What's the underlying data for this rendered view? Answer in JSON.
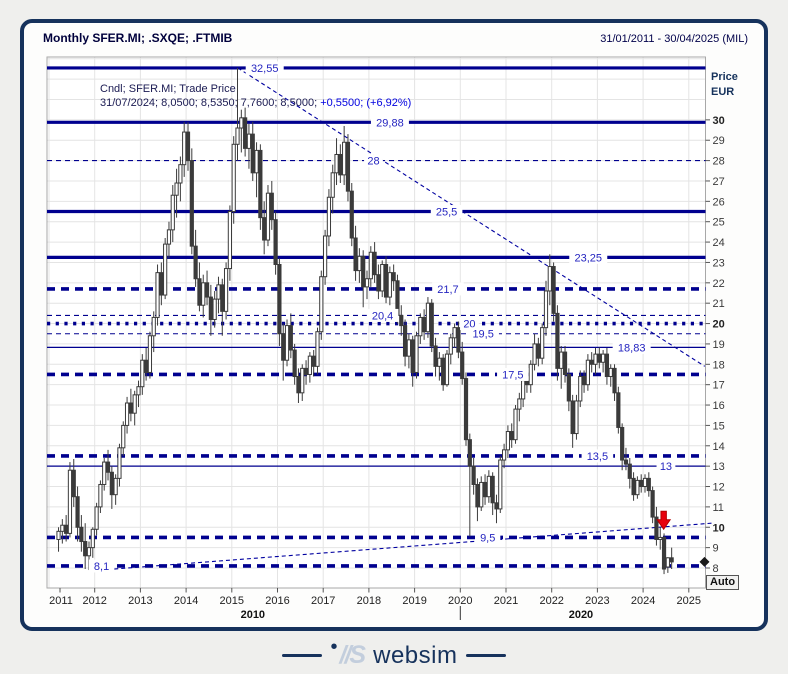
{
  "window": {
    "title": "Monthly SFER.MI; .SXQE; .FTMIB",
    "date_range": "31/01/2011 - 30/04/2025 (MIL)"
  },
  "legend": {
    "line1": "Cndl; SFER.MI; Trade Price",
    "line2_main": "31/07/2024; 8,0500; 8,5350; 7,7600; 8,5000; ",
    "line2_change": "+0,5500; (+6,92%)"
  },
  "price_axis": {
    "title_line1": "Price",
    "title_line2": "EUR",
    "ticks": [
      8,
      9,
      10,
      11,
      12,
      13,
      14,
      15,
      16,
      17,
      18,
      19,
      20,
      21,
      22,
      23,
      24,
      25,
      26,
      27,
      28,
      29,
      30
    ],
    "bold_ticks": [
      10,
      20,
      30
    ]
  },
  "time_axis": {
    "years": [
      2011,
      2012,
      2013,
      2014,
      2015,
      2016,
      2017,
      2018,
      2019,
      2020,
      2021,
      2022,
      2023,
      2024,
      2025
    ],
    "decades": [
      {
        "label": "2010",
        "t": 2015.46
      },
      {
        "label": "2020",
        "t": 2022.64
      }
    ],
    "decade_divider_t": 2020
  },
  "auto_button_label": "Auto",
  "footer": {
    "mark_dot": "•",
    "mark": "//S",
    "brand": "websim"
  },
  "colors": {
    "level_line": "#00008f",
    "level_label": "#2525c0",
    "candle": "#3b3b3b",
    "arrow": "#e8000d",
    "frame": "#16325c",
    "change_text": "#0000e0"
  },
  "chart_data": {
    "type": "candlestick",
    "instrument": "SFER.MI",
    "interval": "Monthly",
    "title": "Monthly SFER.MI; .SXQE; .FTMIB",
    "ylabel": "Price EUR",
    "ylim": [
      7.4,
      33.1
    ],
    "xlim_years": [
      2011,
      2025.37
    ],
    "grid": true,
    "levels": [
      {
        "price": 32.55,
        "label": "32,55",
        "style": "solid-thick",
        "label_t": 2015.72
      },
      {
        "price": 29.88,
        "label": "29,88",
        "style": "solid-thick",
        "label_t": 2018.46
      },
      {
        "price": 28,
        "label": "28",
        "style": "dash-thin",
        "label_t": 2018.1
      },
      {
        "price": 25.5,
        "label": "25,5",
        "style": "solid-thick",
        "label_t": 2019.7
      },
      {
        "price": 23.25,
        "label": "23,25",
        "style": "solid-thick",
        "label_t": 2022.8
      },
      {
        "price": 21.7,
        "label": "21,7",
        "style": "dash-thick",
        "label_t": 2019.73
      },
      {
        "price": 20.4,
        "label": "20,4",
        "style": "dash-thin",
        "label_t": 2018.3
      },
      {
        "price": 20,
        "label": "20",
        "style": "dot-thick",
        "label_t": 2020.2
      },
      {
        "price": 19.5,
        "label": "19,5",
        "style": "dash-thin",
        "label_t": 2020.5
      },
      {
        "price": 18.83,
        "label": "18,83",
        "style": "solid-thin",
        "label_t": 2023.75
      },
      {
        "price": 17.5,
        "label": "17,5",
        "style": "dash-thick",
        "label_t": 2021.15
      },
      {
        "price": 13.5,
        "label": "13,5",
        "style": "dash-thick",
        "label_t": 2023.0
      },
      {
        "price": 13,
        "label": "13",
        "style": "solid-thin",
        "label_t": 2024.5
      },
      {
        "price": 9.5,
        "label": "9,5",
        "style": "dash-thick",
        "label_t": 2020.6
      },
      {
        "price": 8.1,
        "label": "8,1",
        "style": "dash-thick",
        "label_t": 2012.15
      }
    ],
    "trendlines": [
      {
        "name": "descending-resistance",
        "t1": 2015.13,
        "p1": 32.55,
        "t2": 2025.35,
        "p2": 17.9
      },
      {
        "name": "ascending-support",
        "t1": 2011.97,
        "p1": 7.87,
        "t2": 2025.5,
        "p2": 10.2
      }
    ],
    "annotations": [
      {
        "type": "arrow-down",
        "t": 2024.45,
        "tip_price": 9.9
      }
    ],
    "last_price_marker": {
      "price": 8.3
    },
    "candles_ohlc": [
      [
        "2011-03",
        9.4,
        10.0,
        8.8,
        9.8
      ],
      [
        "2011-04",
        9.8,
        10.4,
        9.2,
        10.1
      ],
      [
        "2011-05",
        10.1,
        10.6,
        9.3,
        9.7
      ],
      [
        "2011-06",
        9.7,
        13.2,
        9.5,
        12.8
      ],
      [
        "2011-07",
        12.8,
        13.35,
        11.0,
        11.5
      ],
      [
        "2011-08",
        11.5,
        12.0,
        9.3,
        10.0
      ],
      [
        "2011-09",
        10.0,
        10.6,
        8.8,
        9.3
      ],
      [
        "2011-10",
        9.3,
        10.2,
        7.95,
        8.6
      ],
      [
        "2011-11",
        8.6,
        9.3,
        7.9,
        9.0
      ],
      [
        "2011-12",
        9.0,
        10.0,
        8.5,
        9.9
      ],
      [
        "2012-01",
        9.9,
        11.2,
        9.6,
        11.0
      ],
      [
        "2012-02",
        11.0,
        12.3,
        10.7,
        12.1
      ],
      [
        "2012-03",
        12.1,
        13.4,
        11.8,
        13.2
      ],
      [
        "2012-04",
        13.2,
        13.8,
        12.3,
        12.7
      ],
      [
        "2012-05",
        12.7,
        13.0,
        10.9,
        11.6
      ],
      [
        "2012-06",
        11.6,
        12.6,
        11.1,
        12.4
      ],
      [
        "2012-07",
        12.4,
        14.1,
        12.0,
        13.9
      ],
      [
        "2012-08",
        13.9,
        15.2,
        13.5,
        15.0
      ],
      [
        "2012-09",
        15.0,
        16.4,
        14.6,
        16.1
      ],
      [
        "2012-10",
        16.1,
        16.8,
        15.2,
        15.6
      ],
      [
        "2012-11",
        15.6,
        16.7,
        15.0,
        16.5
      ],
      [
        "2012-12",
        16.5,
        17.2,
        15.9,
        16.9
      ],
      [
        "2013-01",
        16.9,
        18.5,
        16.5,
        18.2
      ],
      [
        "2013-02",
        18.2,
        18.8,
        17.2,
        17.6
      ],
      [
        "2013-03",
        17.6,
        19.6,
        17.3,
        19.4
      ],
      [
        "2013-04",
        19.4,
        20.6,
        18.6,
        20.3
      ],
      [
        "2013-05",
        20.3,
        22.9,
        19.9,
        22.5
      ],
      [
        "2013-06",
        22.5,
        23.0,
        20.9,
        21.4
      ],
      [
        "2013-07",
        21.4,
        24.2,
        21.2,
        23.9
      ],
      [
        "2013-08",
        23.9,
        25.0,
        23.2,
        24.6
      ],
      [
        "2013-09",
        24.6,
        26.8,
        24.0,
        26.3
      ],
      [
        "2013-10",
        26.3,
        27.6,
        25.2,
        26.9
      ],
      [
        "2013-11",
        26.9,
        28.2,
        26.0,
        27.8
      ],
      [
        "2013-12",
        27.8,
        29.9,
        27.2,
        29.4
      ],
      [
        "2014-01",
        29.4,
        29.88,
        27.5,
        28.0
      ],
      [
        "2014-02",
        28.0,
        28.6,
        23.4,
        23.8
      ],
      [
        "2014-03",
        23.8,
        24.6,
        21.8,
        22.2
      ],
      [
        "2014-04",
        22.2,
        23.0,
        20.6,
        20.9
      ],
      [
        "2014-05",
        20.9,
        22.4,
        20.3,
        22.0
      ],
      [
        "2014-06",
        22.0,
        22.6,
        20.9,
        21.3
      ],
      [
        "2014-07",
        21.3,
        21.9,
        19.4,
        20.2
      ],
      [
        "2014-08",
        20.2,
        21.6,
        19.8,
        21.2
      ],
      [
        "2014-09",
        21.2,
        22.3,
        20.5,
        21.9
      ],
      [
        "2014-10",
        21.9,
        22.2,
        19.4,
        20.6
      ],
      [
        "2014-11",
        20.6,
        23.0,
        20.2,
        22.7
      ],
      [
        "2014-12",
        22.7,
        25.8,
        22.1,
        25.5
      ],
      [
        "2015-01",
        25.5,
        29.2,
        24.9,
        28.8
      ],
      [
        "2015-02",
        28.8,
        32.55,
        28.0,
        29.6
      ],
      [
        "2015-03",
        29.6,
        30.5,
        28.4,
        30.1
      ],
      [
        "2015-04",
        30.1,
        30.6,
        28.2,
        28.6
      ],
      [
        "2015-05",
        28.6,
        29.8,
        27.6,
        29.3
      ],
      [
        "2015-06",
        29.3,
        29.9,
        27.0,
        27.4
      ],
      [
        "2015-07",
        27.4,
        28.9,
        26.2,
        28.5
      ],
      [
        "2015-08",
        28.5,
        28.8,
        24.6,
        25.2
      ],
      [
        "2015-09",
        25.2,
        26.0,
        23.4,
        24.1
      ],
      [
        "2015-10",
        24.1,
        26.8,
        23.8,
        26.4
      ],
      [
        "2015-11",
        26.4,
        27.0,
        24.6,
        25.1
      ],
      [
        "2015-12",
        25.1,
        25.5,
        22.4,
        22.9
      ],
      [
        "2016-01",
        22.9,
        23.2,
        18.9,
        19.5
      ],
      [
        "2016-02",
        19.5,
        20.0,
        17.2,
        18.2
      ],
      [
        "2016-03",
        18.2,
        20.2,
        17.9,
        19.9
      ],
      [
        "2016-04",
        19.9,
        20.5,
        18.3,
        18.7
      ],
      [
        "2016-05",
        18.7,
        19.0,
        17.0,
        17.4
      ],
      [
        "2016-06",
        17.4,
        17.8,
        16.1,
        16.6
      ],
      [
        "2016-07",
        16.6,
        18.0,
        16.2,
        17.8
      ],
      [
        "2016-08",
        17.8,
        18.2,
        17.0,
        17.5
      ],
      [
        "2016-09",
        17.5,
        18.6,
        17.1,
        18.4
      ],
      [
        "2016-10",
        18.4,
        18.7,
        17.4,
        17.9
      ],
      [
        "2016-11",
        17.9,
        19.8,
        17.5,
        19.6
      ],
      [
        "2016-12",
        19.6,
        22.6,
        19.2,
        22.3
      ],
      [
        "2017-01",
        22.3,
        24.6,
        21.9,
        24.3
      ],
      [
        "2017-02",
        24.3,
        26.6,
        23.8,
        26.2
      ],
      [
        "2017-03",
        26.2,
        27.8,
        25.4,
        27.4
      ],
      [
        "2017-04",
        27.4,
        29.1,
        26.8,
        28.3
      ],
      [
        "2017-05",
        28.3,
        28.8,
        26.9,
        27.3
      ],
      [
        "2017-06",
        27.3,
        29.7,
        26.8,
        28.9
      ],
      [
        "2017-07",
        28.9,
        29.3,
        26.0,
        26.5
      ],
      [
        "2017-08",
        26.5,
        26.9,
        23.8,
        24.2
      ],
      [
        "2017-09",
        24.2,
        24.8,
        22.1,
        22.6
      ],
      [
        "2017-10",
        22.6,
        23.7,
        22.0,
        23.3
      ],
      [
        "2017-11",
        23.3,
        23.6,
        20.8,
        21.8
      ],
      [
        "2017-12",
        21.8,
        22.6,
        21.2,
        22.2
      ],
      [
        "2018-01",
        22.2,
        23.8,
        21.8,
        23.5
      ],
      [
        "2018-02",
        23.5,
        24.0,
        22.0,
        22.4
      ],
      [
        "2018-03",
        22.4,
        22.9,
        21.2,
        21.6
      ],
      [
        "2018-04",
        21.6,
        23.1,
        21.3,
        22.9
      ],
      [
        "2018-05",
        22.9,
        23.3,
        21.0,
        21.3
      ],
      [
        "2018-06",
        21.3,
        22.8,
        20.9,
        22.5
      ],
      [
        "2018-07",
        22.5,
        22.9,
        21.6,
        22.1
      ],
      [
        "2018-08",
        22.1,
        22.4,
        20.0,
        20.4
      ],
      [
        "2018-09",
        20.4,
        20.9,
        19.4,
        19.9
      ],
      [
        "2018-10",
        19.9,
        20.2,
        17.9,
        18.4
      ],
      [
        "2018-11",
        18.4,
        19.5,
        17.8,
        19.2
      ],
      [
        "2018-12",
        19.2,
        19.4,
        16.9,
        17.6
      ],
      [
        "2019-01",
        17.6,
        19.6,
        17.3,
        19.4
      ],
      [
        "2019-02",
        19.4,
        20.5,
        19.0,
        20.3
      ],
      [
        "2019-03",
        20.3,
        20.7,
        19.2,
        19.6
      ],
      [
        "2019-04",
        19.6,
        21.3,
        19.3,
        21.0
      ],
      [
        "2019-05",
        21.0,
        21.2,
        18.6,
        18.9
      ],
      [
        "2019-06",
        18.9,
        19.3,
        17.4,
        17.9
      ],
      [
        "2019-07",
        17.9,
        18.6,
        17.2,
        18.3
      ],
      [
        "2019-08",
        18.3,
        18.5,
        16.7,
        17.0
      ],
      [
        "2019-09",
        17.0,
        18.7,
        16.9,
        18.5
      ],
      [
        "2019-10",
        18.5,
        19.5,
        18.0,
        19.3
      ],
      [
        "2019-11",
        19.3,
        20.0,
        18.8,
        19.8
      ],
      [
        "2019-12",
        19.8,
        20.1,
        18.3,
        18.6
      ],
      [
        "2020-01",
        18.6,
        19.1,
        17.0,
        17.3
      ],
      [
        "2020-02",
        17.3,
        17.6,
        14.0,
        14.3
      ],
      [
        "2020-03",
        14.3,
        14.6,
        9.55,
        13.0
      ],
      [
        "2020-04",
        13.0,
        13.4,
        11.6,
        12.1
      ],
      [
        "2020-05",
        12.1,
        12.4,
        10.3,
        11.0
      ],
      [
        "2020-06",
        11.0,
        12.5,
        10.8,
        12.2
      ],
      [
        "2020-07",
        12.2,
        12.6,
        11.1,
        11.5
      ],
      [
        "2020-08",
        11.5,
        12.8,
        11.2,
        12.5
      ],
      [
        "2020-09",
        12.5,
        12.7,
        10.6,
        11.2
      ],
      [
        "2020-10",
        11.2,
        11.6,
        10.2,
        10.9
      ],
      [
        "2020-11",
        10.9,
        13.5,
        10.7,
        13.3
      ],
      [
        "2020-12",
        13.3,
        14.1,
        12.9,
        13.8
      ],
      [
        "2021-01",
        13.8,
        15.0,
        13.4,
        14.7
      ],
      [
        "2021-02",
        14.7,
        15.1,
        13.9,
        14.3
      ],
      [
        "2021-03",
        14.3,
        16.0,
        14.1,
        15.8
      ],
      [
        "2021-04",
        15.8,
        16.6,
        15.2,
        16.3
      ],
      [
        "2021-05",
        16.3,
        17.5,
        15.9,
        17.2
      ],
      [
        "2021-06",
        17.2,
        17.6,
        16.6,
        17.0
      ],
      [
        "2021-07",
        17.0,
        18.2,
        16.6,
        18.0
      ],
      [
        "2021-08",
        18.0,
        19.5,
        17.7,
        19.0
      ],
      [
        "2021-09",
        19.0,
        19.3,
        17.9,
        18.3
      ],
      [
        "2021-10",
        18.3,
        20.0,
        18.0,
        19.8
      ],
      [
        "2021-11",
        19.8,
        22.1,
        19.4,
        21.6
      ],
      [
        "2021-12",
        21.6,
        23.4,
        20.9,
        22.8
      ],
      [
        "2022-01",
        22.8,
        23.0,
        20.1,
        20.5
      ],
      [
        "2022-02",
        20.5,
        20.9,
        17.2,
        17.8
      ],
      [
        "2022-03",
        17.8,
        18.9,
        16.8,
        18.6
      ],
      [
        "2022-04",
        18.6,
        18.9,
        17.1,
        17.5
      ],
      [
        "2022-05",
        17.5,
        17.8,
        15.7,
        16.2
      ],
      [
        "2022-06",
        16.2,
        16.5,
        13.9,
        14.6
      ],
      [
        "2022-07",
        14.6,
        16.5,
        14.3,
        16.2
      ],
      [
        "2022-08",
        16.2,
        17.7,
        15.9,
        17.4
      ],
      [
        "2022-09",
        17.4,
        17.7,
        16.6,
        17.0
      ],
      [
        "2022-10",
        17.0,
        18.5,
        16.7,
        18.2
      ],
      [
        "2022-11",
        18.2,
        18.6,
        17.6,
        18.0
      ],
      [
        "2022-12",
        18.0,
        18.8,
        17.5,
        18.5
      ],
      [
        "2023-01",
        18.5,
        18.83,
        17.8,
        18.1
      ],
      [
        "2023-02",
        18.1,
        18.7,
        17.6,
        18.5
      ],
      [
        "2023-03",
        18.5,
        18.8,
        17.0,
        17.4
      ],
      [
        "2023-04",
        17.4,
        18.0,
        16.9,
        17.8
      ],
      [
        "2023-05",
        17.8,
        18.0,
        16.2,
        16.6
      ],
      [
        "2023-06",
        16.6,
        16.9,
        14.6,
        14.9
      ],
      [
        "2023-07",
        14.9,
        15.1,
        12.8,
        13.3
      ],
      [
        "2023-08",
        13.3,
        13.9,
        12.8,
        13.1
      ],
      [
        "2023-09",
        13.1,
        13.4,
        11.9,
        12.4
      ],
      [
        "2023-10",
        12.4,
        12.7,
        11.3,
        11.6
      ],
      [
        "2023-11",
        11.6,
        12.5,
        11.4,
        12.3
      ],
      [
        "2023-12",
        12.3,
        12.6,
        11.7,
        12.0
      ],
      [
        "2024-01",
        12.0,
        12.6,
        11.7,
        12.4
      ],
      [
        "2024-02",
        12.4,
        12.7,
        11.5,
        11.8
      ],
      [
        "2024-03",
        11.8,
        12.0,
        10.2,
        10.5
      ],
      [
        "2024-04",
        10.5,
        11.0,
        9.1,
        9.4
      ],
      [
        "2024-05",
        9.4,
        10.0,
        8.9,
        9.5
      ],
      [
        "2024-06",
        9.5,
        9.7,
        7.7,
        7.95
      ],
      [
        "2024-07",
        8.05,
        8.535,
        7.76,
        8.5
      ],
      [
        "2024-08",
        8.5,
        9.0,
        7.95,
        8.3
      ]
    ]
  }
}
